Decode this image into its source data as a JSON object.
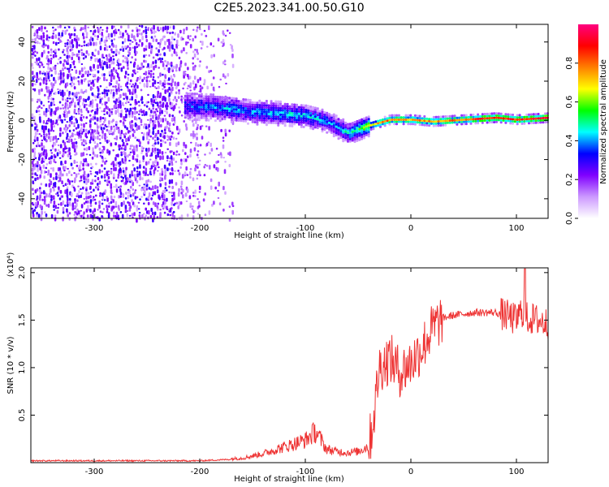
{
  "title": "C2E5.2023.341.00.50.G10",
  "chart_data": [
    {
      "type": "heatmap",
      "name": "spectrogram",
      "xlabel": "Height of straight line (km)",
      "ylabel": "Frequency (Hz)",
      "xlim": [
        -360,
        130
      ],
      "ylim": [
        -50,
        49
      ],
      "xticks": [
        "-300",
        "-200",
        "-100",
        "0",
        "100"
      ],
      "yticks": [
        "40",
        "20",
        "0",
        "-20",
        "-40"
      ],
      "colorbar": {
        "label": "Normalized spectral amplitude",
        "range": [
          0,
          1
        ],
        "ticks": [
          "0.0",
          "0.2",
          "0.4",
          "0.6",
          "0.8"
        ],
        "colors": [
          "#ffffff",
          "#cc99ff",
          "#8000ff",
          "#0000ff",
          "#00ffff",
          "#00ff00",
          "#ffff00",
          "#ff8000",
          "#ff0000",
          "#ff0080"
        ]
      },
      "ridge": {
        "x": [
          -210,
          -180,
          -150,
          -120,
          -100,
          -80,
          -60,
          -50,
          -40,
          -20,
          0,
          20,
          50,
          80,
          100,
          130
        ],
        "frequency": [
          8,
          7,
          5,
          4,
          3,
          0,
          -6,
          -4,
          -2,
          1,
          1,
          0,
          1,
          2,
          1,
          2
        ],
        "amplitude": [
          0.35,
          0.4,
          0.4,
          0.45,
          0.45,
          0.4,
          0.45,
          0.55,
          0.65,
          0.8,
          0.75,
          0.75,
          0.8,
          0.9,
          0.85,
          0.9
        ]
      }
    },
    {
      "type": "line",
      "name": "snr",
      "xlabel": "Height of straight line (km)",
      "ylabel": "SNR (10 * v/v)",
      "yscale_label": "(x10⁴)",
      "xlim": [
        -360,
        130
      ],
      "ylim": [
        0,
        2.05
      ],
      "xticks": [
        "-300",
        "-200",
        "-100",
        "0",
        "100"
      ],
      "yticks": [
        "0.5",
        "1.0",
        "1.5",
        "2.0"
      ],
      "color": "#ee3333",
      "x": [
        -360,
        -300,
        -250,
        -200,
        -180,
        -160,
        -140,
        -120,
        -100,
        -90,
        -80,
        -70,
        -60,
        -50,
        -40,
        -35,
        -30,
        -20,
        -10,
        0,
        10,
        20,
        30,
        40,
        60,
        80,
        90,
        100,
        105,
        110,
        120,
        130
      ],
      "values": [
        0.02,
        0.02,
        0.02,
        0.02,
        0.03,
        0.04,
        0.08,
        0.14,
        0.2,
        0.28,
        0.12,
        0.1,
        0.09,
        0.1,
        0.15,
        0.5,
        1.0,
        1.1,
        0.95,
        1.05,
        1.2,
        1.4,
        1.52,
        1.55,
        1.58,
        1.58,
        1.55,
        1.5,
        1.6,
        1.52,
        1.5,
        1.46
      ]
    }
  ]
}
